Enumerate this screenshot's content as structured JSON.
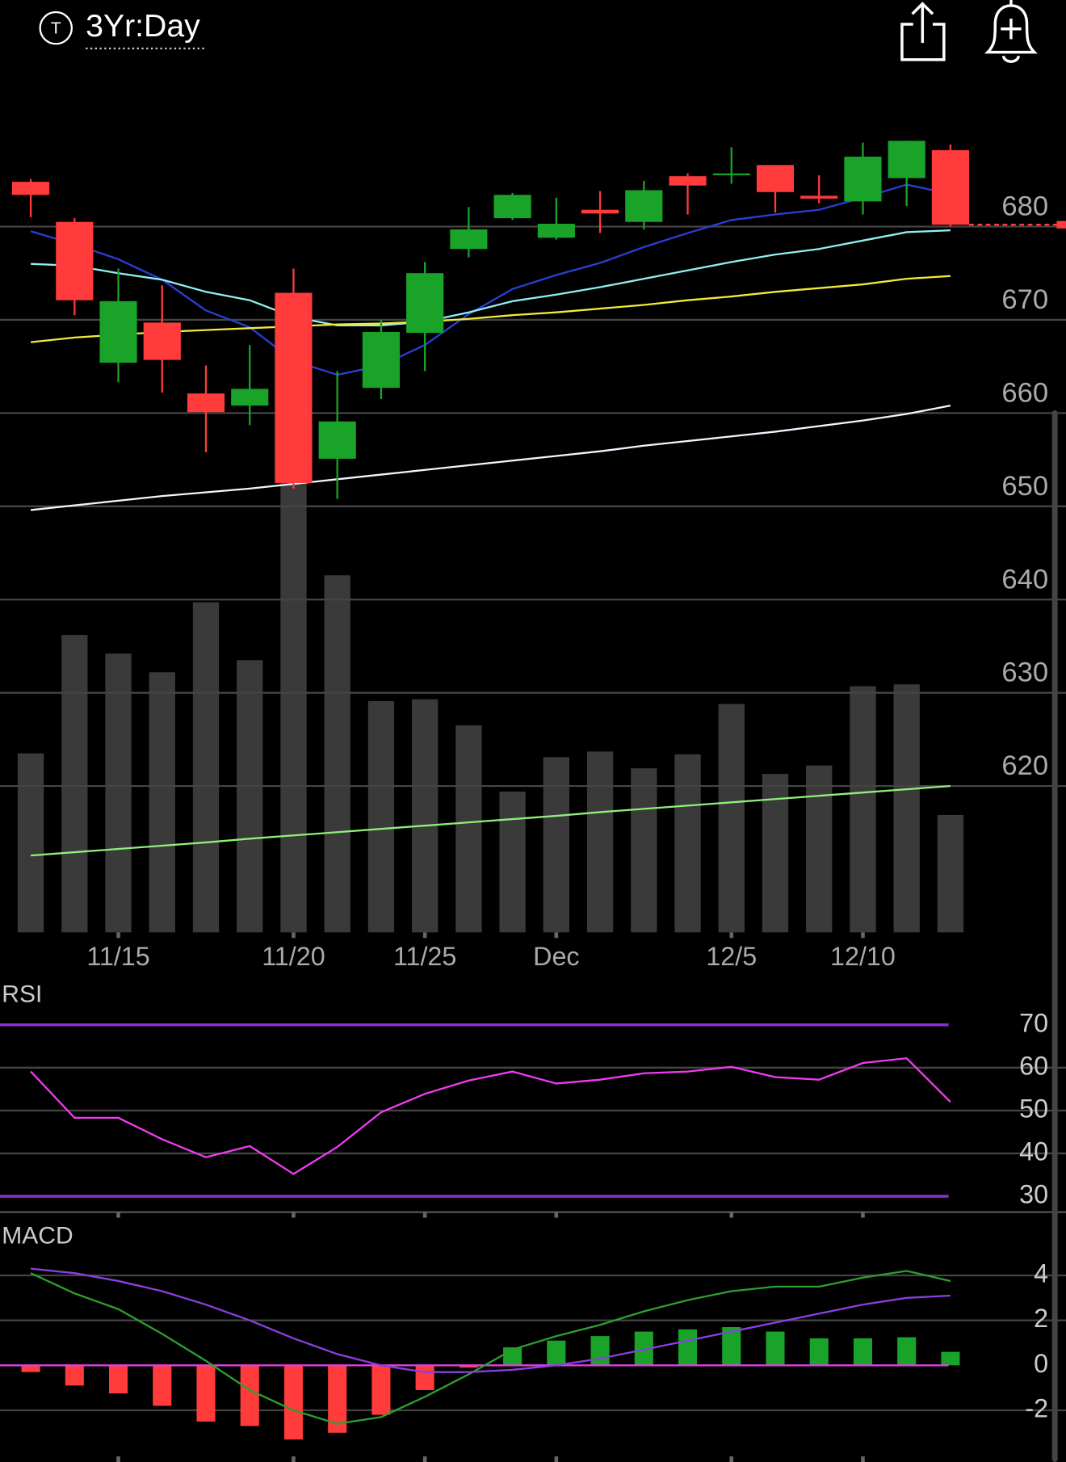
{
  "header": {
    "icon_label": "T",
    "timeframe": "3Yr:Day"
  },
  "chart_data": [
    {
      "type": "candlestick",
      "categories": [
        null,
        null,
        "11/15",
        null,
        null,
        null,
        "11/20",
        null,
        null,
        "11/25",
        null,
        null,
        "Dec",
        null,
        null,
        null,
        "12/5",
        null,
        null,
        "12/10",
        null,
        null
      ],
      "open": [
        684.8,
        680.5,
        665.4,
        669.7,
        662.1,
        660.8,
        672.9,
        655.1,
        662.7,
        668.6,
        677.6,
        680.9,
        678.8,
        681.8,
        680.5,
        685.4,
        685.5,
        686.6,
        683.3,
        682.7,
        685.2,
        688.2
      ],
      "high": [
        685.1,
        680.9,
        675.5,
        673.7,
        665.1,
        667.3,
        675.5,
        664.5,
        670.0,
        676.2,
        682.1,
        683.6,
        683.1,
        683.8,
        684.9,
        685.7,
        688.5,
        686.6,
        685.5,
        689.0,
        689.2,
        688.8
      ],
      "low": [
        681.0,
        670.5,
        663.3,
        662.2,
        655.8,
        658.7,
        651.9,
        650.8,
        661.5,
        664.5,
        676.7,
        680.7,
        678.6,
        679.3,
        679.7,
        681.3,
        684.6,
        681.5,
        682.5,
        681.3,
        682.2,
        680.0
      ],
      "close": [
        683.4,
        672.1,
        672.0,
        665.7,
        660.1,
        662.6,
        652.5,
        659.1,
        668.7,
        675.0,
        679.7,
        683.4,
        680.3,
        681.4,
        683.9,
        684.4,
        685.7,
        683.7,
        683.0,
        687.5,
        689.2,
        680.2
      ],
      "up_color": "#1aa329",
      "down_color": "#ff3b3b",
      "ylim": [
        604.3,
        694.3
      ],
      "yticks": [
        620,
        630,
        640,
        650,
        660,
        670,
        680
      ],
      "grid": true,
      "moving_averages": [
        {
          "color": "#2a3fd6",
          "values": [
            679.5,
            678.1,
            676.5,
            674.3,
            671.0,
            669.2,
            665.6,
            664.1,
            665.1,
            667.3,
            670.6,
            673.3,
            674.8,
            676.1,
            677.8,
            679.3,
            680.7,
            681.3,
            681.8,
            683.1,
            684.5,
            683.5
          ]
        },
        {
          "color": "#8ff0f0",
          "values": [
            676.0,
            675.8,
            675.0,
            674.3,
            673.0,
            672.1,
            670.3,
            669.4,
            669.4,
            669.8,
            670.8,
            672.0,
            672.7,
            673.5,
            674.4,
            675.3,
            676.2,
            677.0,
            677.6,
            678.5,
            679.4,
            679.6
          ]
        },
        {
          "color": "#f2ea3a",
          "values": [
            667.6,
            668.1,
            668.4,
            668.7,
            668.9,
            669.1,
            669.3,
            669.5,
            669.6,
            669.8,
            670.1,
            670.5,
            670.8,
            671.2,
            671.6,
            672.1,
            672.5,
            673.0,
            673.4,
            673.8,
            674.4,
            674.7
          ]
        },
        {
          "color": "#eef6ff",
          "values": [
            649.6,
            650.1,
            650.6,
            651.1,
            651.5,
            651.9,
            652.4,
            652.9,
            653.4,
            653.9,
            654.4,
            654.9,
            655.4,
            655.9,
            656.5,
            657.0,
            657.5,
            658.0,
            658.6,
            659.2,
            659.9,
            660.8
          ]
        }
      ],
      "volume": {
        "color": "#3a3a3a",
        "ylim": [
          0,
          100
        ],
        "values": [
          38.4,
          63.8,
          59.8,
          55.8,
          70.8,
          58.4,
          97,
          76.6,
          49.6,
          50,
          44.4,
          30.2,
          37.6,
          38.8,
          35.2,
          38.2,
          49,
          34,
          35.8,
          52.8,
          53.2,
          25.2
        ],
        "average": {
          "color": "#8ef07a",
          "values": [
            16.5,
            17.2,
            17.9,
            18.6,
            19.3,
            20.1,
            20.8,
            21.5,
            22.2,
            22.9,
            23.6,
            24.3,
            25.0,
            25.8,
            26.5,
            27.2,
            27.9,
            28.6,
            29.3,
            30.0,
            30.7,
            31.4
          ]
        }
      }
    },
    {
      "type": "line",
      "title": "RSI",
      "ylim": [
        26.3,
        79.6
      ],
      "yticks": [
        30,
        40,
        50,
        60,
        70
      ],
      "grid": true,
      "reference_lines": [
        {
          "value": 70,
          "color": "#8a2fd0"
        },
        {
          "value": 30,
          "color": "#8a2fd0"
        }
      ],
      "series": [
        {
          "color": "#f03cf0",
          "values": [
            59.1,
            48.3,
            48.3,
            43.3,
            39.1,
            41.7,
            35.2,
            41.5,
            49.6,
            53.9,
            57.0,
            59.1,
            56.3,
            57.2,
            58.7,
            59.1,
            60.2,
            57.8,
            57.2,
            61.1,
            62.2,
            52.0
          ]
        }
      ]
    },
    {
      "type": "macd",
      "title": "MACD",
      "ylim": [
        -4.3,
        6.4
      ],
      "yticks": [
        -2,
        0,
        2,
        4
      ],
      "grid": true,
      "zero_line_color": "#e040e0",
      "histogram": {
        "up_color": "#1aa329",
        "down_color": "#ff3b3b",
        "values": [
          -0.3,
          -0.9,
          -1.25,
          -1.8,
          -2.5,
          -2.7,
          -3.3,
          -3.0,
          -2.2,
          -1.1,
          -0.1,
          0.8,
          1.1,
          1.3,
          1.5,
          1.6,
          1.7,
          1.5,
          1.2,
          1.2,
          1.25,
          0.6
        ]
      },
      "series": [
        {
          "color": "#2e9e2e",
          "values": [
            4.1,
            3.2,
            2.5,
            1.4,
            0.2,
            -1.1,
            -2.0,
            -2.6,
            -2.3,
            -1.4,
            -0.4,
            0.7,
            1.3,
            1.8,
            2.4,
            2.9,
            3.3,
            3.5,
            3.5,
            3.9,
            4.2,
            3.75
          ]
        },
        {
          "color": "#8a3fe0",
          "values": [
            4.3,
            4.1,
            3.75,
            3.3,
            2.7,
            2.0,
            1.2,
            0.5,
            0.0,
            -0.3,
            -0.3,
            -0.2,
            0.0,
            0.3,
            0.7,
            1.1,
            1.5,
            1.9,
            2.3,
            2.7,
            3.0,
            3.1
          ]
        }
      ]
    }
  ]
}
